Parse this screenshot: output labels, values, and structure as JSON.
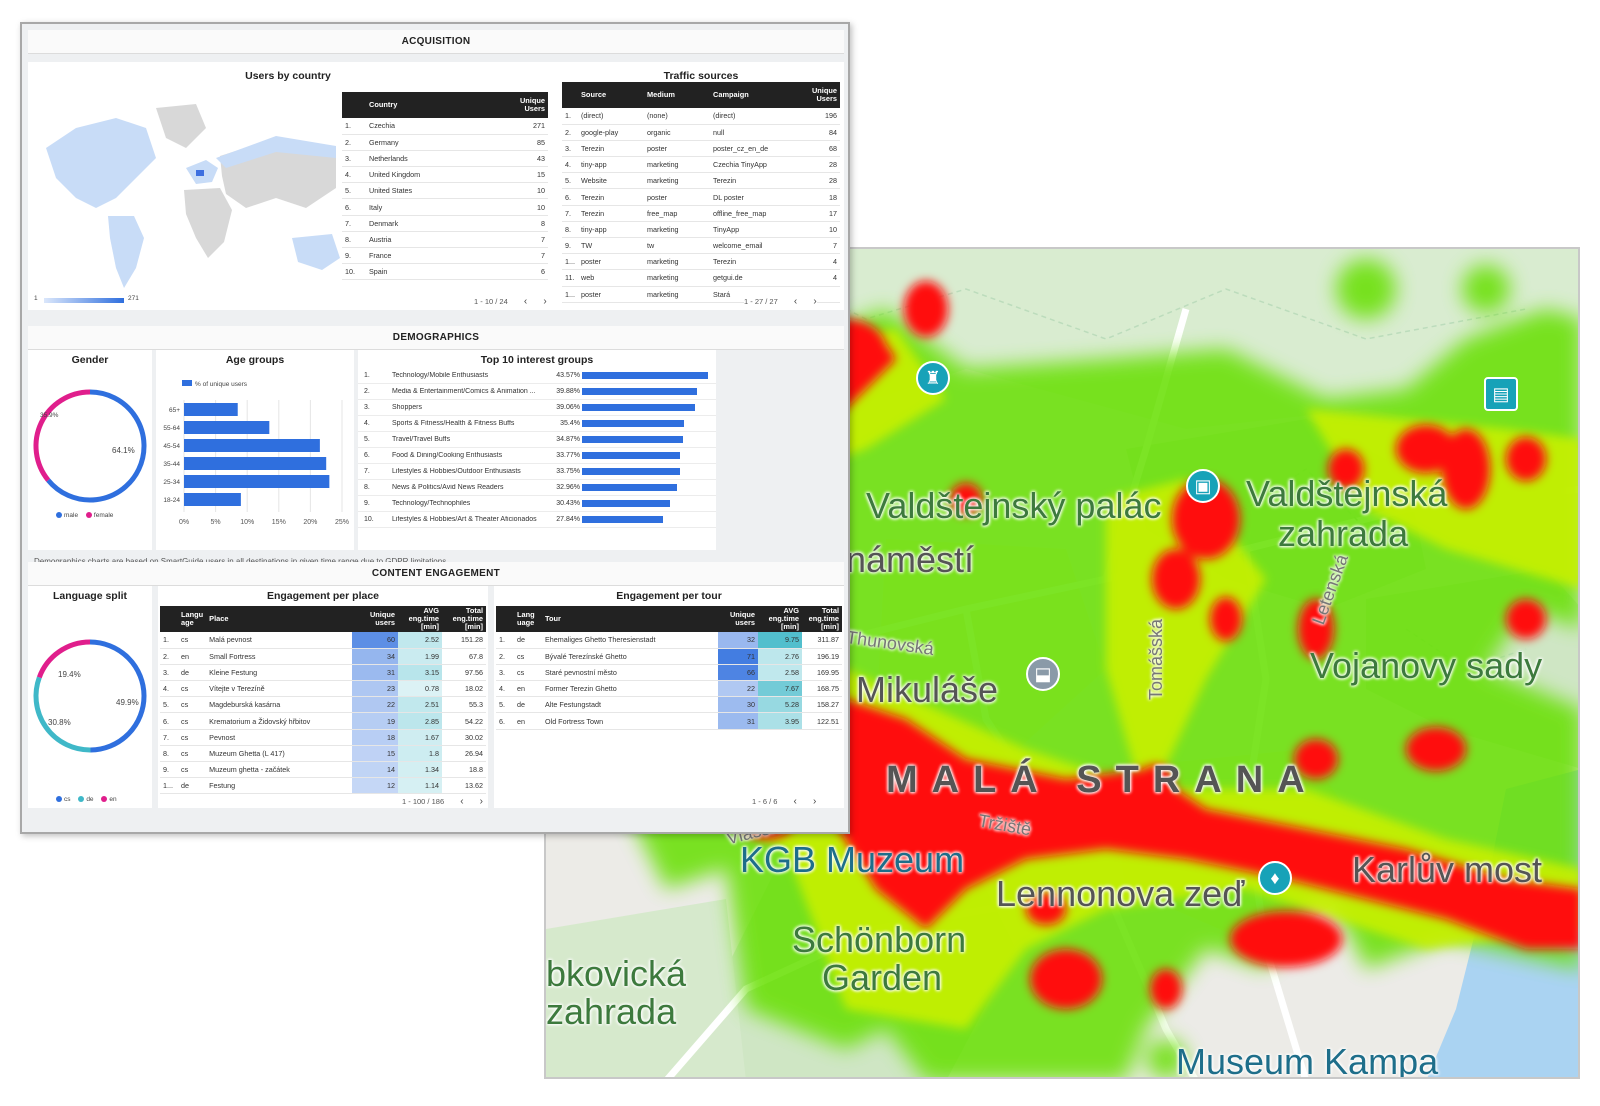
{
  "map": {
    "labels": {
      "hrad": "hrad",
      "valdstejnsky_palac": "Valdštejnský palác",
      "valdstejnska_zahrada_1": "Valdštejnská",
      "valdstejnska_zahrada_2": "zahrada",
      "namesti": "náměstí",
      "sv_mikulase": "Mikuláše",
      "thunovska": "Thunovská",
      "tomasska": "Tomášská",
      "vojanovy_sady": "Vojanovy sady",
      "mala_strana": "MALÁ STRANA",
      "vlasska": "Vlašská",
      "trziste": "Tržiště",
      "kgb_muzeum": "KGB Muzeum",
      "lennonova_zed": "Lennonova zeď",
      "karluv_most": "Karlův most",
      "schonborn_1": "Schönborn",
      "schonborn_2": "Garden",
      "lobkovicka_1": "bkovická",
      "lobkovicka_2": "zahrada",
      "muzeum_kampa": "Museum Kampa",
      "letenska": "Letenská"
    },
    "colors": {
      "heat_hot": "#ff0000",
      "heat_mid": "#ffea00",
      "heat_cool": "#5ee000",
      "water": "#aad3f2",
      "park": "#cfe6c4"
    }
  },
  "dashboard": {
    "acquisition": {
      "title": "ACQUISITION",
      "users_by_country": {
        "title": "Users by country",
        "scale_min": "1",
        "scale_max": "271",
        "headers": [
          "Country",
          "Unique Users"
        ],
        "rows": [
          [
            "1.",
            "Czechia",
            "271"
          ],
          [
            "2.",
            "Germany",
            "85"
          ],
          [
            "3.",
            "Netherlands",
            "43"
          ],
          [
            "4.",
            "United Kingdom",
            "15"
          ],
          [
            "5.",
            "United States",
            "10"
          ],
          [
            "6.",
            "Italy",
            "10"
          ],
          [
            "7.",
            "Denmark",
            "8"
          ],
          [
            "8.",
            "Austria",
            "7"
          ],
          [
            "9.",
            "France",
            "7"
          ],
          [
            "10.",
            "Spain",
            "6"
          ]
        ],
        "pager": "1 - 10 / 24"
      },
      "traffic_sources": {
        "title": "Traffic sources",
        "headers": [
          "Source",
          "Medium",
          "Campaign",
          "Unique Users"
        ],
        "rows": [
          [
            "1.",
            "(direct)",
            "(none)",
            "(direct)",
            "196"
          ],
          [
            "2.",
            "google-play",
            "organic",
            "null",
            "84"
          ],
          [
            "3.",
            "Terezin",
            "poster",
            "poster_cz_en_de",
            "68"
          ],
          [
            "4.",
            "tiny-app",
            "marketing",
            "Czechia TinyApp",
            "28"
          ],
          [
            "5.",
            "Website",
            "marketing",
            "Terezin",
            "28"
          ],
          [
            "6.",
            "Terezin",
            "poster",
            "DL poster",
            "18"
          ],
          [
            "7.",
            "Terezin",
            "free_map",
            "offline_free_map",
            "17"
          ],
          [
            "8.",
            "tiny-app",
            "marketing",
            "TinyApp",
            "10"
          ],
          [
            "9.",
            "TW",
            "tw",
            "welcome_email",
            "7"
          ],
          [
            "1...",
            "poster",
            "marketing",
            "Terezin",
            "4"
          ],
          [
            "11.",
            "web",
            "marketing",
            "getgui.de",
            "4"
          ],
          [
            "1...",
            "poster",
            "marketing",
            "Stará",
            ""
          ]
        ],
        "pager": "1 - 27 / 27"
      }
    },
    "demographics": {
      "title": "DEMOGRAPHICS",
      "gender": {
        "title": "Gender",
        "male_pct": 64.1,
        "female_pct": 35.9,
        "male_label": "64.1%",
        "female_label": "35.9%",
        "legend_male": "male",
        "legend_female": "female",
        "male_color": "#2f6fde",
        "female_color": "#e01e8c"
      },
      "age_groups": {
        "title": "Age groups",
        "legend": "% of unique users",
        "ticks": [
          "0%",
          "5%",
          "10%",
          "15%",
          "20%",
          "25%"
        ]
      },
      "interests": {
        "title": "Top 10 interest groups",
        "rows": [
          [
            "1.",
            "Technology/Mobile Enthusiasts",
            "43.57%"
          ],
          [
            "2.",
            "Media & Entertainment/Comics & Animation ...",
            "39.88%"
          ],
          [
            "3.",
            "Shoppers",
            "39.06%"
          ],
          [
            "4.",
            "Sports & Fitness/Health & Fitness Buffs",
            "35.4%"
          ],
          [
            "5.",
            "Travel/Travel Buffs",
            "34.87%"
          ],
          [
            "6.",
            "Food & Dining/Cooking Enthusiasts",
            "33.77%"
          ],
          [
            "7.",
            "Lifestyles & Hobbies/Outdoor Enthusiasts",
            "33.75%"
          ],
          [
            "8.",
            "News & Politics/Avid News Readers",
            "32.96%"
          ],
          [
            "9.",
            "Technology/Technophiles",
            "30.43%"
          ],
          [
            "10.",
            "Lifestyles & Hobbies/Art & Theater Aficionados",
            "27.84%"
          ]
        ]
      },
      "note": "Demographics charts are based on SmartGuide users in all destinations in given time range due to GDPR limitations."
    },
    "content": {
      "title": "CONTENT ENGAGEMENT",
      "language_split": {
        "title": "Language split",
        "cs_pct": 49.9,
        "de_pct": 30.8,
        "en_pct": 19.4,
        "cs_label": "49.9%",
        "de_label": "30.8%",
        "en_label": "19.4%",
        "legend": [
          "cs",
          "de",
          "en"
        ],
        "cs_color": "#2f6fde",
        "de_color": "#3fb8c8",
        "en_color": "#e01e8c"
      },
      "per_place": {
        "title": "Engagement per place",
        "headers": [
          "Langu age",
          "Place",
          "Unique users",
          "AVG eng.time [min]",
          "Total eng.time [min]"
        ],
        "rows": [
          [
            "1.",
            "cs",
            "Malá pevnost",
            "60",
            "2.52",
            "151.28"
          ],
          [
            "2.",
            "en",
            "Small Fortress",
            "34",
            "1.99",
            "67.8"
          ],
          [
            "3.",
            "de",
            "Kleine Festung",
            "31",
            "3.15",
            "97.56"
          ],
          [
            "4.",
            "cs",
            "Vítejte v Terezíně",
            "23",
            "0.78",
            "18.02"
          ],
          [
            "5.",
            "cs",
            "Magdeburská kasárna",
            "22",
            "2.51",
            "55.3"
          ],
          [
            "6.",
            "cs",
            "Krematorium a Židovský hřbitov",
            "19",
            "2.85",
            "54.22"
          ],
          [
            "7.",
            "cs",
            "Pevnost",
            "18",
            "1.67",
            "30.02"
          ],
          [
            "8.",
            "cs",
            "Muzeum Ghetta (L 417)",
            "15",
            "1.8",
            "26.94"
          ],
          [
            "9.",
            "cs",
            "Muzeum ghetta - začátek",
            "14",
            "1.34",
            "18.8"
          ],
          [
            "1...",
            "de",
            "Festung",
            "12",
            "1.14",
            "13.62"
          ]
        ],
        "pager": "1 - 100 / 186"
      },
      "per_tour": {
        "title": "Engagement per tour",
        "headers": [
          "Lang uage",
          "Tour",
          "Unique users",
          "AVG eng.time [min]",
          "Total eng.time [min]"
        ],
        "rows": [
          [
            "1.",
            "de",
            "Ehemaliges Ghetto Theresienstadt",
            "32",
            "9.75",
            "311.87"
          ],
          [
            "2.",
            "cs",
            "Bývalé Terezínské Ghetto",
            "71",
            "2.76",
            "196.19"
          ],
          [
            "3.",
            "cs",
            "Staré pevnostní město",
            "66",
            "2.58",
            "169.95"
          ],
          [
            "4.",
            "en",
            "Former Terezin Ghetto",
            "22",
            "7.67",
            "168.75"
          ],
          [
            "5.",
            "de",
            "Alte Festungstadt",
            "30",
            "5.28",
            "158.27"
          ],
          [
            "6.",
            "en",
            "Old Fortress Town",
            "31",
            "3.95",
            "122.51"
          ]
        ],
        "pager": "1 - 6 / 6"
      }
    }
  },
  "chart_data": [
    {
      "type": "bar",
      "orientation": "horizontal",
      "title": "Age groups",
      "categories": [
        "65+",
        "55-64",
        "45-54",
        "35-44",
        "25-34",
        "18-24"
      ],
      "series": [
        {
          "name": "% of unique users",
          "values": [
            8.5,
            13.5,
            21.5,
            22.5,
            23,
            9
          ]
        }
      ],
      "xlim": [
        0,
        25
      ]
    },
    {
      "type": "bar",
      "orientation": "horizontal",
      "title": "Top 10 interest groups",
      "categories": [
        "Technology/Mobile Enthusiasts",
        "Media & Entertainment/Comics & Animation ...",
        "Shoppers",
        "Sports & Fitness/Health & Fitness Buffs",
        "Travel/Travel Buffs",
        "Food & Dining/Cooking Enthusiasts",
        "Lifestyles & Hobbies/Outdoor Enthusiasts",
        "News & Politics/Avid News Readers",
        "Technology/Technophiles",
        "Lifestyles & Hobbies/Art & Theater Aficionados"
      ],
      "values": [
        43.57,
        39.88,
        39.06,
        35.4,
        34.87,
        33.77,
        33.75,
        32.96,
        30.43,
        27.84
      ]
    }
  ]
}
